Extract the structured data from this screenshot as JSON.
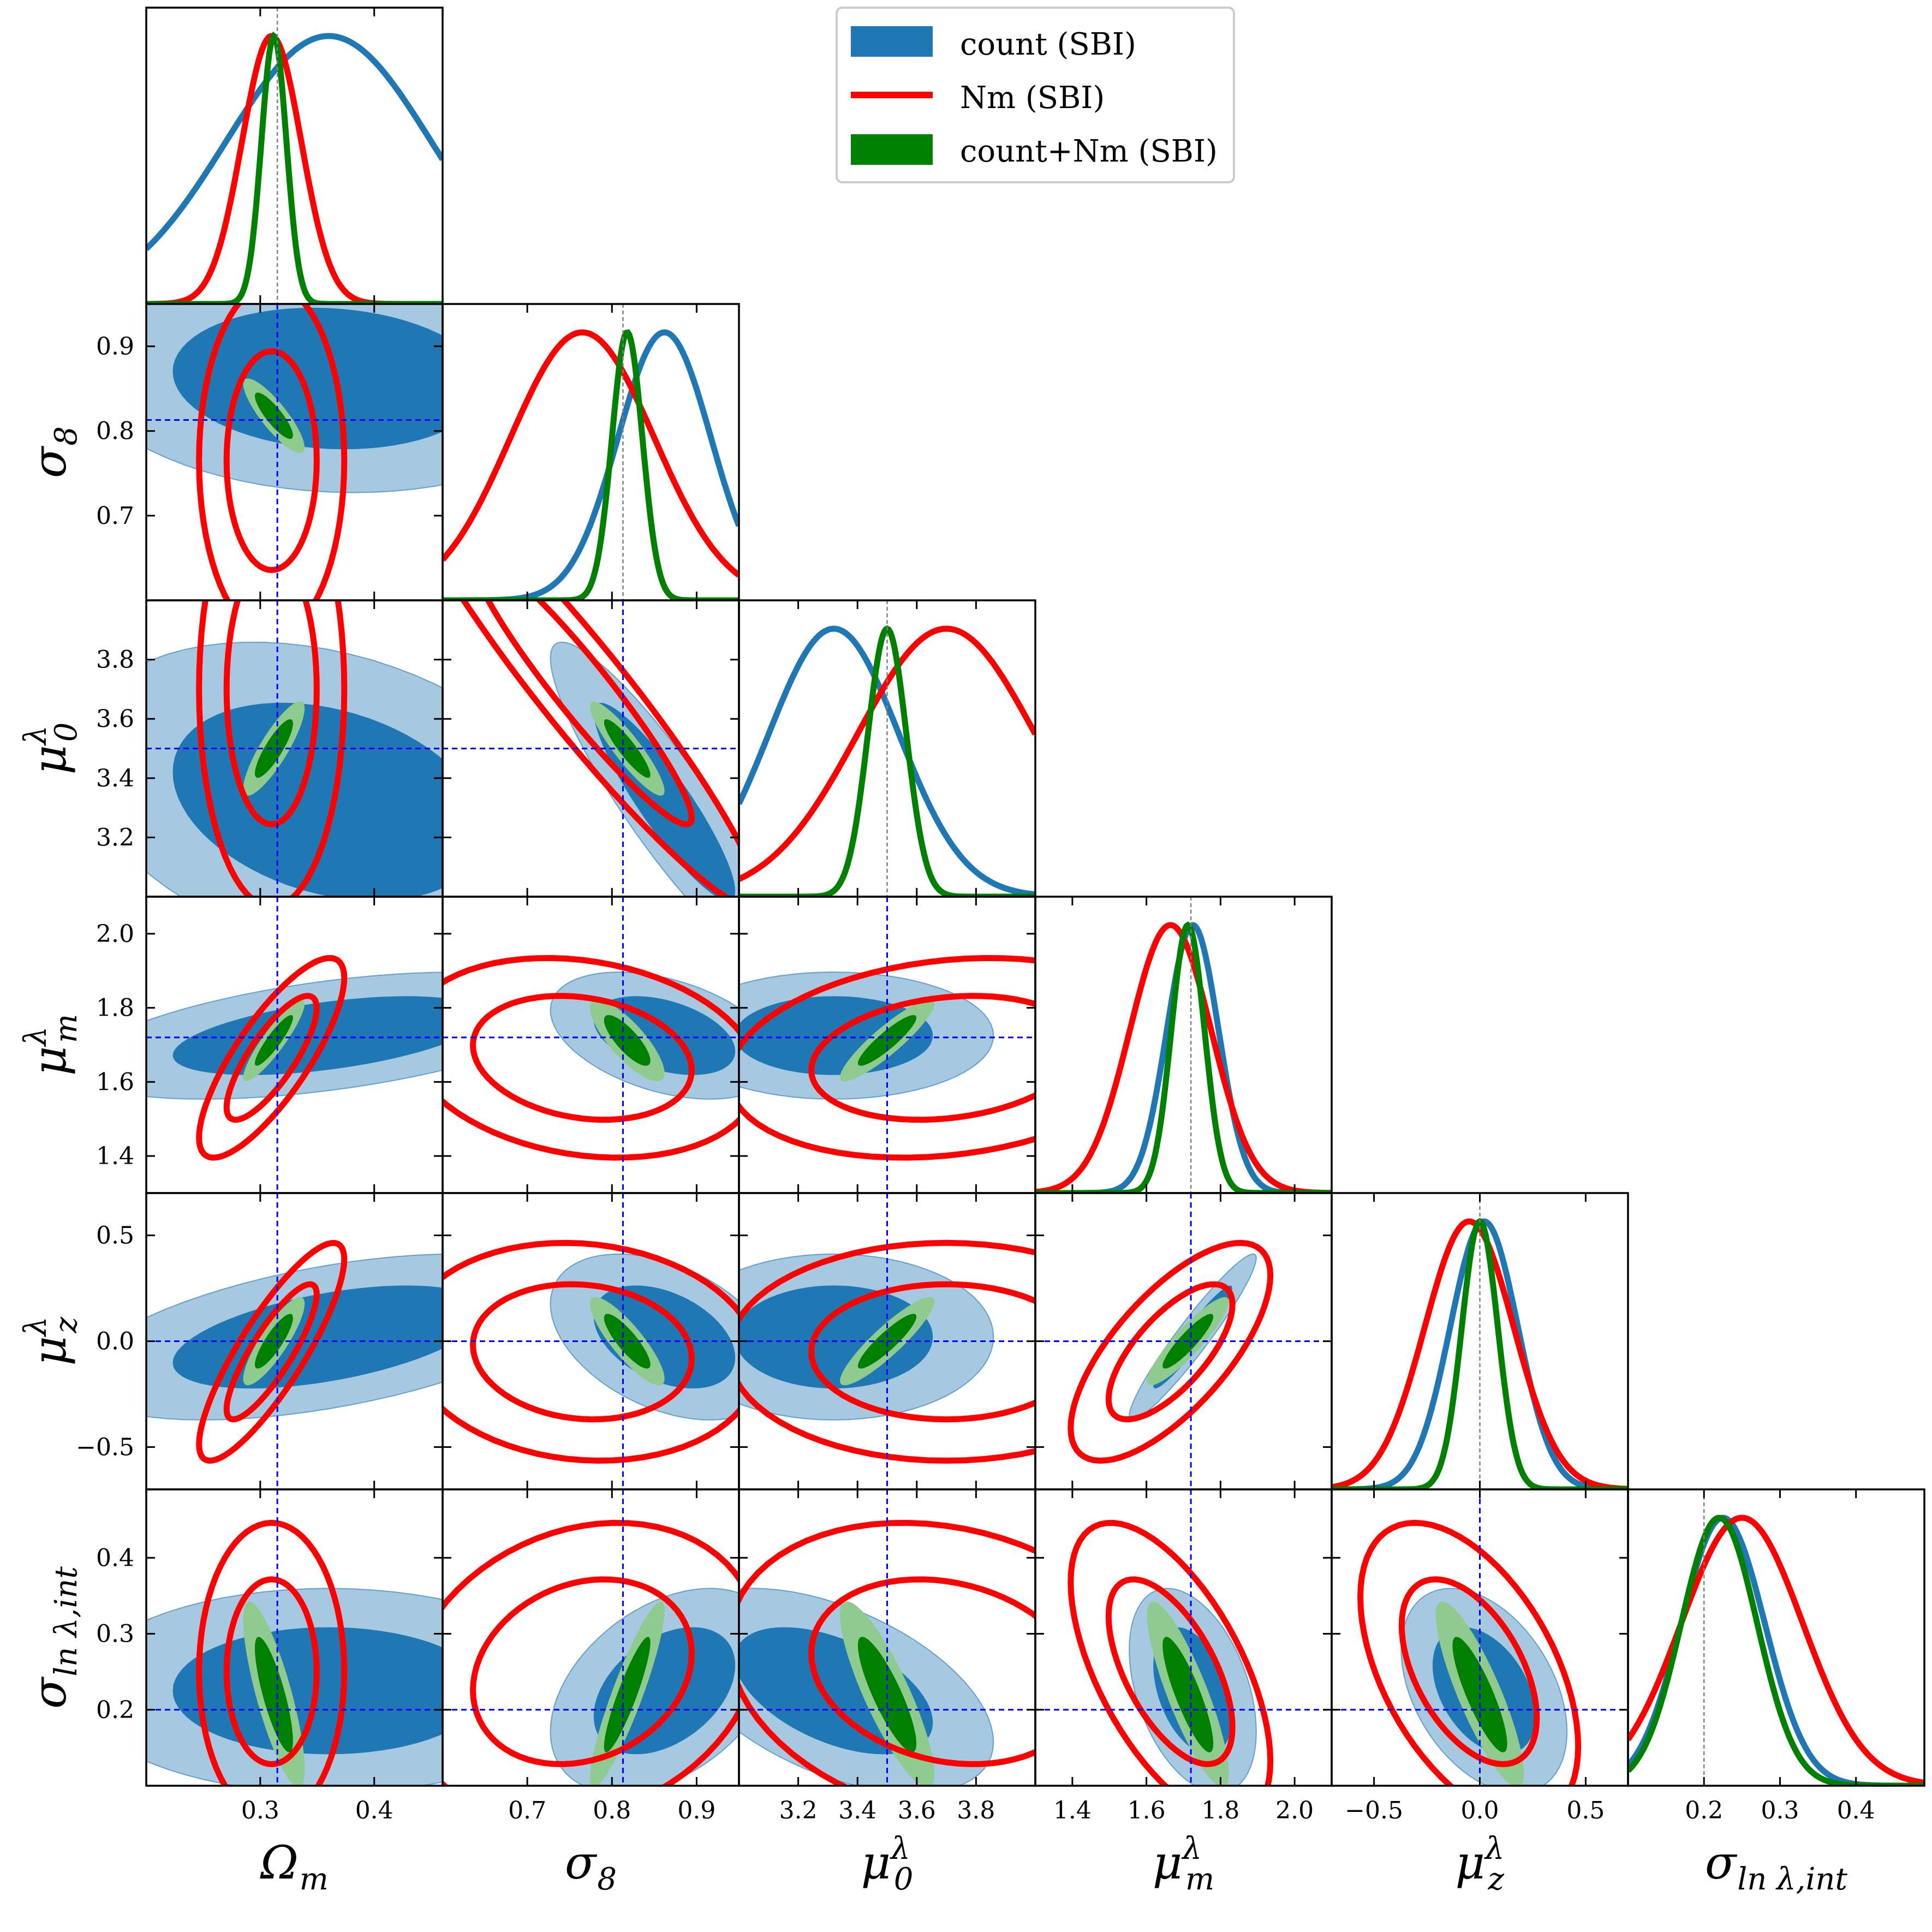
{
  "chart_data": {
    "type": "corner",
    "colors": {
      "count": "#1f77b4",
      "count_light": "#a7c8e1",
      "nm": "#ff0000",
      "combo": "#008000",
      "combo_light": "#8fcb8f",
      "truth": "#0000ff",
      "truth_1d": "#808080"
    },
    "legend": [
      {
        "label": "count (SBI)",
        "color": "#1f77b4",
        "style": "patch"
      },
      {
        "label": "Nm (SBI)",
        "color": "#ff0000",
        "style": "line"
      },
      {
        "label": "count+Nm (SBI)",
        "color": "#008000",
        "style": "patch"
      }
    ],
    "params": [
      {
        "key": "Om",
        "label": "Ω",
        "sub": "m",
        "sup": "",
        "range": [
          0.2,
          0.46
        ],
        "ticks": [
          0.3,
          0.4
        ],
        "tick_labels": [
          "0.3",
          "0.4"
        ],
        "truth": 0.315
      },
      {
        "key": "s8",
        "label": "σ",
        "sub": "8",
        "sup": "",
        "range": [
          0.6,
          0.95
        ],
        "ticks": [
          0.7,
          0.8,
          0.9
        ],
        "tick_labels": [
          "0.7",
          "0.8",
          "0.9"
        ],
        "truth": 0.813
      },
      {
        "key": "mu0",
        "label": "μ",
        "sub": "0",
        "sup": "λ",
        "range": [
          3.0,
          4.0
        ],
        "ticks": [
          3.2,
          3.4,
          3.6,
          3.8
        ],
        "tick_labels": [
          "3.2",
          "3.4",
          "3.6",
          "3.8"
        ],
        "truth": 3.5
      },
      {
        "key": "mum",
        "label": "μ",
        "sub": "m",
        "sup": "λ",
        "range": [
          1.3,
          2.1
        ],
        "ticks": [
          1.4,
          1.6,
          1.8,
          2.0
        ],
        "tick_labels": [
          "1.4",
          "1.6",
          "1.8",
          "2.0"
        ],
        "truth": 1.72
      },
      {
        "key": "muz",
        "label": "μ",
        "sub": "z",
        "sup": "λ",
        "range": [
          -0.7,
          0.7
        ],
        "ticks": [
          -0.5,
          0.0,
          0.5
        ],
        "tick_labels": [
          "−0.5",
          "0.0",
          "0.5"
        ],
        "truth": 0.0
      },
      {
        "key": "sig",
        "label": "σ",
        "sub": "ln λ,int",
        "sup": "",
        "range": [
          0.1,
          0.49
        ],
        "ticks": [
          0.2,
          0.3,
          0.4
        ],
        "tick_labels": [
          "0.2",
          "0.3",
          "0.4"
        ],
        "truth": 0.2
      }
    ],
    "posteriors": {
      "count": {
        "mean": [
          0.36,
          0.862,
          3.32,
          1.725,
          0.02,
          0.225
        ],
        "sd": [
          0.09,
          0.055,
          0.22,
          0.07,
          0.16,
          0.055
        ],
        "corr": [
          [
            0,
            1,
            -0.1
          ],
          [
            0,
            2,
            -0.3
          ],
          [
            0,
            3,
            0.5
          ],
          [
            0,
            4,
            0.5
          ],
          [
            0,
            5,
            0.0
          ],
          [
            1,
            2,
            -0.9
          ],
          [
            1,
            3,
            -0.4
          ],
          [
            1,
            4,
            -0.4
          ],
          [
            1,
            5,
            0.4
          ],
          [
            2,
            3,
            0.0
          ],
          [
            2,
            4,
            0.0
          ],
          [
            2,
            5,
            -0.5
          ],
          [
            3,
            4,
            0.95
          ],
          [
            3,
            5,
            -0.4
          ],
          [
            4,
            5,
            -0.4
          ]
        ]
      },
      "nm": {
        "mean": [
          0.31,
          0.765,
          3.7,
          1.665,
          -0.05,
          0.25
        ],
        "sd": [
          0.026,
          0.085,
          0.3,
          0.11,
          0.21,
          0.08
        ],
        "corr": [
          [
            0,
            1,
            0.0
          ],
          [
            0,
            2,
            0.0
          ],
          [
            0,
            3,
            0.8
          ],
          [
            0,
            4,
            0.85
          ],
          [
            0,
            5,
            0.0
          ],
          [
            1,
            2,
            -0.95
          ],
          [
            1,
            3,
            -0.2
          ],
          [
            1,
            4,
            -0.1
          ],
          [
            1,
            5,
            0.2
          ],
          [
            2,
            3,
            0.2
          ],
          [
            2,
            4,
            0.0
          ],
          [
            2,
            5,
            -0.2
          ],
          [
            3,
            4,
            0.7
          ],
          [
            3,
            5,
            -0.6
          ],
          [
            4,
            5,
            -0.5
          ]
        ]
      },
      "combo": {
        "mean": [
          0.312,
          0.818,
          3.5,
          1.712,
          0.0,
          0.22
        ],
        "sd": [
          0.011,
          0.018,
          0.065,
          0.045,
          0.085,
          0.05
        ],
        "corr": [
          [
            0,
            1,
            -0.85
          ],
          [
            0,
            2,
            0.85
          ],
          [
            0,
            3,
            0.9
          ],
          [
            0,
            4,
            0.85
          ],
          [
            0,
            5,
            -0.8
          ],
          [
            1,
            2,
            -0.9
          ],
          [
            1,
            3,
            -0.8
          ],
          [
            1,
            4,
            -0.85
          ],
          [
            1,
            5,
            0.9
          ],
          [
            2,
            3,
            0.9
          ],
          [
            2,
            4,
            0.9
          ],
          [
            2,
            5,
            -0.85
          ],
          [
            3,
            4,
            0.9
          ],
          [
            3,
            5,
            -0.85
          ],
          [
            4,
            5,
            -0.85
          ]
        ]
      }
    },
    "xlabel_row": [
      "Ω_m",
      "σ_8",
      "μ_0^λ",
      "μ_m^λ",
      "μ_z^λ",
      "σ_lnλ,int"
    ]
  }
}
